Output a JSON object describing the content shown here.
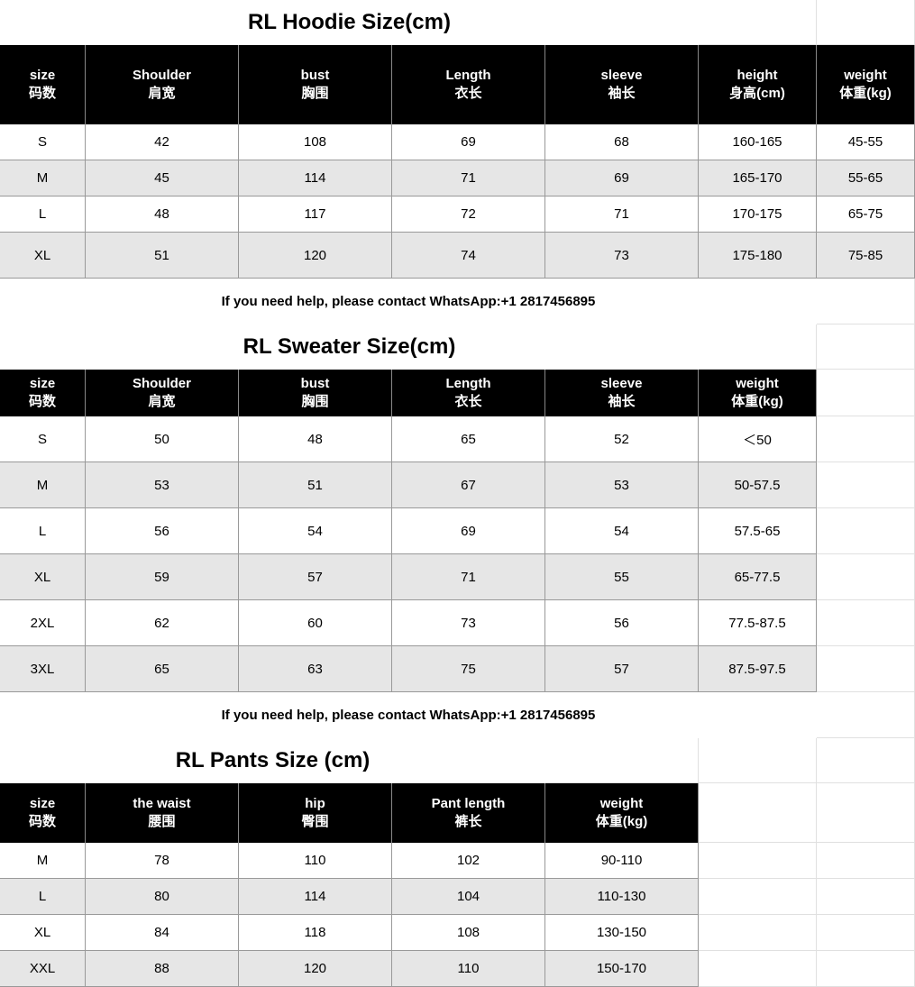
{
  "tables": [
    {
      "title": "RL Hoodie Size(cm)",
      "headers": [
        [
          "size",
          "码数"
        ],
        [
          "Shoulder",
          "肩宽"
        ],
        [
          "bust",
          "胸围"
        ],
        [
          "Length",
          "衣长"
        ],
        [
          "sleeve",
          "袖长"
        ],
        [
          "height",
          "身高(cm)"
        ],
        [
          "weight",
          "体重(kg)"
        ]
      ],
      "rows": [
        [
          "S",
          "42",
          "108",
          "69",
          "68",
          "160-165",
          "45-55"
        ],
        [
          "M",
          "45",
          "114",
          "71",
          "69",
          "165-170",
          "55-65"
        ],
        [
          "L",
          "48",
          "117",
          "72",
          "71",
          "170-175",
          "65-75"
        ],
        [
          "XL",
          "51",
          "120",
          "74",
          "73",
          "175-180",
          "75-85"
        ]
      ],
      "help": "If you need help, please contact WhatsApp:+1 2817456895"
    },
    {
      "title": "RL Sweater Size(cm)",
      "headers": [
        [
          "size",
          "码数"
        ],
        [
          "Shoulder",
          "肩宽"
        ],
        [
          "bust",
          "胸围"
        ],
        [
          "Length",
          "衣长"
        ],
        [
          "sleeve",
          "袖长"
        ],
        [
          "weight",
          "体重(kg)"
        ]
      ],
      "rows": [
        [
          "S",
          "50",
          "48",
          "65",
          "52",
          "＜50"
        ],
        [
          "M",
          "53",
          "51",
          "67",
          "53",
          "50-57.5"
        ],
        [
          "L",
          "56",
          "54",
          "69",
          "54",
          "57.5-65"
        ],
        [
          "XL",
          "59",
          "57",
          "71",
          "55",
          "65-77.5"
        ],
        [
          "2XL",
          "62",
          "60",
          "73",
          "56",
          "77.5-87.5"
        ],
        [
          "3XL",
          "65",
          "63",
          "75",
          "57",
          "87.5-97.5"
        ]
      ],
      "help": "If you need help, please contact WhatsApp:+1 2817456895"
    },
    {
      "title": "RL Pants Size (cm)",
      "headers": [
        [
          "size",
          "码数"
        ],
        [
          "the waist",
          "腰围"
        ],
        [
          "hip",
          "臀围"
        ],
        [
          "Pant length",
          "裤长"
        ],
        [
          "weight",
          "体重(kg)"
        ]
      ],
      "rows": [
        [
          "M",
          "78",
          "110",
          "102",
          "90-110"
        ],
        [
          "L",
          "80",
          "114",
          "104",
          "110-130"
        ],
        [
          "XL",
          "84",
          "118",
          "108",
          "130-150"
        ],
        [
          "XXL",
          "88",
          "120",
          "110",
          "150-170"
        ]
      ]
    }
  ],
  "colors": {
    "header_bg": "#000000",
    "alt_row_bg": "#e6e6e6"
  }
}
